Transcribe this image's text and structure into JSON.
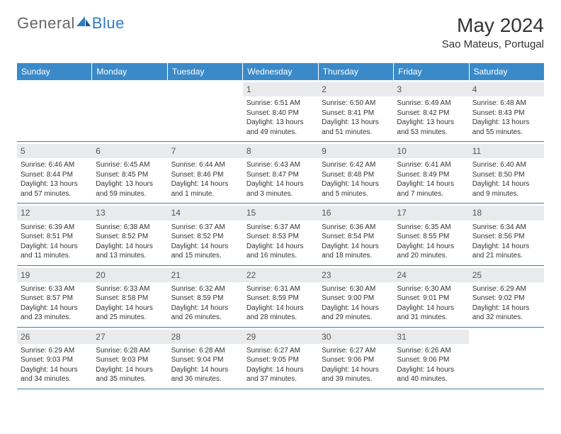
{
  "colors": {
    "header_bg": "#3a8ac9",
    "header_text": "#ffffff",
    "row_border": "#3a7fb5",
    "daynum_bg": "#e8eaec",
    "body_text": "#333333",
    "logo_gray": "#666666",
    "logo_blue": "#2f7bbf"
  },
  "logo": {
    "word1": "General",
    "word2": "Blue"
  },
  "title": "May 2024",
  "location": "Sao Mateus, Portugal",
  "weekdays": [
    "Sunday",
    "Monday",
    "Tuesday",
    "Wednesday",
    "Thursday",
    "Friday",
    "Saturday"
  ],
  "first_weekday_index": 3,
  "days": [
    {
      "n": 1,
      "sunrise": "6:51 AM",
      "sunset": "8:40 PM",
      "daylight": "13 hours and 49 minutes."
    },
    {
      "n": 2,
      "sunrise": "6:50 AM",
      "sunset": "8:41 PM",
      "daylight": "13 hours and 51 minutes."
    },
    {
      "n": 3,
      "sunrise": "6:49 AM",
      "sunset": "8:42 PM",
      "daylight": "13 hours and 53 minutes."
    },
    {
      "n": 4,
      "sunrise": "6:48 AM",
      "sunset": "8:43 PM",
      "daylight": "13 hours and 55 minutes."
    },
    {
      "n": 5,
      "sunrise": "6:46 AM",
      "sunset": "8:44 PM",
      "daylight": "13 hours and 57 minutes."
    },
    {
      "n": 6,
      "sunrise": "6:45 AM",
      "sunset": "8:45 PM",
      "daylight": "13 hours and 59 minutes."
    },
    {
      "n": 7,
      "sunrise": "6:44 AM",
      "sunset": "8:46 PM",
      "daylight": "14 hours and 1 minute."
    },
    {
      "n": 8,
      "sunrise": "6:43 AM",
      "sunset": "8:47 PM",
      "daylight": "14 hours and 3 minutes."
    },
    {
      "n": 9,
      "sunrise": "6:42 AM",
      "sunset": "8:48 PM",
      "daylight": "14 hours and 5 minutes."
    },
    {
      "n": 10,
      "sunrise": "6:41 AM",
      "sunset": "8:49 PM",
      "daylight": "14 hours and 7 minutes."
    },
    {
      "n": 11,
      "sunrise": "6:40 AM",
      "sunset": "8:50 PM",
      "daylight": "14 hours and 9 minutes."
    },
    {
      "n": 12,
      "sunrise": "6:39 AM",
      "sunset": "8:51 PM",
      "daylight": "14 hours and 11 minutes."
    },
    {
      "n": 13,
      "sunrise": "6:38 AM",
      "sunset": "8:52 PM",
      "daylight": "14 hours and 13 minutes."
    },
    {
      "n": 14,
      "sunrise": "6:37 AM",
      "sunset": "8:52 PM",
      "daylight": "14 hours and 15 minutes."
    },
    {
      "n": 15,
      "sunrise": "6:37 AM",
      "sunset": "8:53 PM",
      "daylight": "14 hours and 16 minutes."
    },
    {
      "n": 16,
      "sunrise": "6:36 AM",
      "sunset": "8:54 PM",
      "daylight": "14 hours and 18 minutes."
    },
    {
      "n": 17,
      "sunrise": "6:35 AM",
      "sunset": "8:55 PM",
      "daylight": "14 hours and 20 minutes."
    },
    {
      "n": 18,
      "sunrise": "6:34 AM",
      "sunset": "8:56 PM",
      "daylight": "14 hours and 21 minutes."
    },
    {
      "n": 19,
      "sunrise": "6:33 AM",
      "sunset": "8:57 PM",
      "daylight": "14 hours and 23 minutes."
    },
    {
      "n": 20,
      "sunrise": "6:33 AM",
      "sunset": "8:58 PM",
      "daylight": "14 hours and 25 minutes."
    },
    {
      "n": 21,
      "sunrise": "6:32 AM",
      "sunset": "8:59 PM",
      "daylight": "14 hours and 26 minutes."
    },
    {
      "n": 22,
      "sunrise": "6:31 AM",
      "sunset": "8:59 PM",
      "daylight": "14 hours and 28 minutes."
    },
    {
      "n": 23,
      "sunrise": "6:30 AM",
      "sunset": "9:00 PM",
      "daylight": "14 hours and 29 minutes."
    },
    {
      "n": 24,
      "sunrise": "6:30 AM",
      "sunset": "9:01 PM",
      "daylight": "14 hours and 31 minutes."
    },
    {
      "n": 25,
      "sunrise": "6:29 AM",
      "sunset": "9:02 PM",
      "daylight": "14 hours and 32 minutes."
    },
    {
      "n": 26,
      "sunrise": "6:29 AM",
      "sunset": "9:03 PM",
      "daylight": "14 hours and 34 minutes."
    },
    {
      "n": 27,
      "sunrise": "6:28 AM",
      "sunset": "9:03 PM",
      "daylight": "14 hours and 35 minutes."
    },
    {
      "n": 28,
      "sunrise": "6:28 AM",
      "sunset": "9:04 PM",
      "daylight": "14 hours and 36 minutes."
    },
    {
      "n": 29,
      "sunrise": "6:27 AM",
      "sunset": "9:05 PM",
      "daylight": "14 hours and 37 minutes."
    },
    {
      "n": 30,
      "sunrise": "6:27 AM",
      "sunset": "9:06 PM",
      "daylight": "14 hours and 39 minutes."
    },
    {
      "n": 31,
      "sunrise": "6:26 AM",
      "sunset": "9:06 PM",
      "daylight": "14 hours and 40 minutes."
    }
  ],
  "labels": {
    "sunrise": "Sunrise:",
    "sunset": "Sunset:",
    "daylight": "Daylight:"
  }
}
